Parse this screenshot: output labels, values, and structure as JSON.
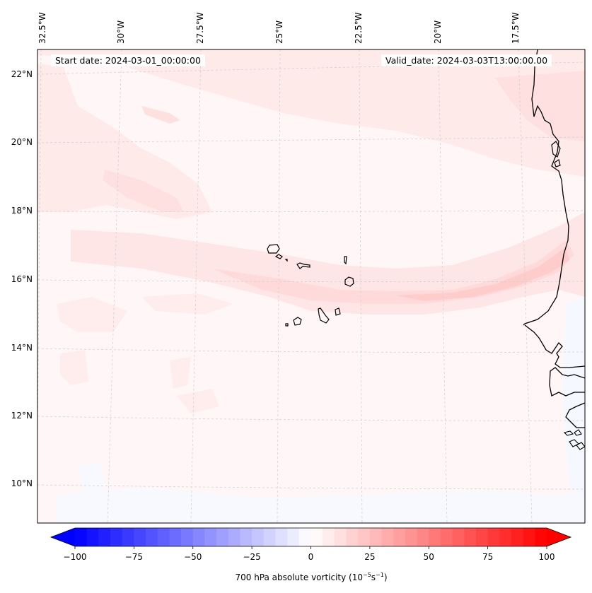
{
  "map": {
    "type": "contourf",
    "variable": "700 hPa absolute vorticity",
    "units_label_prefix": "700 hPa absolute vorticity (10",
    "units_exp1": "−5",
    "units_mid": "s",
    "units_exp2": "−1",
    "units_suffix": ")",
    "start_date_label": "Start date: 2024-03-01_00:00:00",
    "valid_date_label": "Valid_date: 2024-03-03T13:00:00.00",
    "longitude_labels": [
      "32.5°W",
      "30°W",
      "27.5°W",
      "25°W",
      "22.5°W",
      "20°W",
      "17.5°W"
    ],
    "latitude_labels": [
      "22°N",
      "20°N",
      "18°N",
      "16°N",
      "14°N",
      "12°N",
      "10°N"
    ],
    "extent": {
      "lon_min": -32.7,
      "lon_max": -15.5,
      "lat_min": 9,
      "lat_max": 22.8
    },
    "features": [
      "Cape Verde islands",
      "West African coastline (Mauritania, Senegal, Gambia, Guinea-Bissau)"
    ],
    "gridlines": "dashed"
  },
  "chart_data": {
    "type": "heatmap",
    "title": "",
    "colorbar": {
      "label": "700 hPa absolute vorticity (10^-5 s^-1)",
      "ticks": [
        -100,
        -75,
        -50,
        -25,
        0,
        25,
        50,
        75,
        100
      ],
      "tick_labels": [
        "−100",
        "−75",
        "−50",
        "−25",
        "0",
        "25",
        "50",
        "75",
        "100"
      ],
      "range": [
        -100,
        100
      ],
      "levels": 41,
      "colormap": "bwr",
      "extend": "both",
      "color_min": "#0000ff",
      "color_mid": "#ffffff",
      "color_max": "#ff0000"
    },
    "observed_range_approx": [
      -5,
      20
    ],
    "notes": "Weak positive vorticity band (~10-20) along ~15.5-17°N from Cape Verde to West African coast; broad positive area north of 19°N; near-zero values south of 14°N"
  }
}
